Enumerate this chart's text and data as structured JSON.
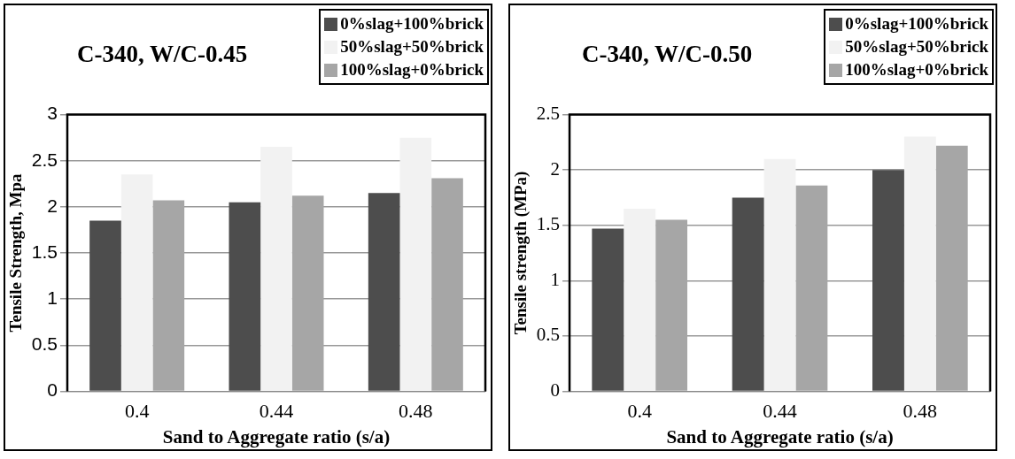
{
  "chart_data": [
    {
      "type": "bar",
      "title": "C-340, W/C-0.45",
      "xlabel": "Sand to Aggregate ratio (s/a)",
      "ylabel": "Tensile Strength, Mpa",
      "categories": [
        "0.4",
        "0.44",
        "0.48"
      ],
      "series": [
        {
          "name": "0%slag+100%brick",
          "color": "#4d4d4d",
          "values": [
            1.85,
            2.05,
            2.15
          ]
        },
        {
          "name": "50%slag+50%brick",
          "color": "#f2f2f2",
          "values": [
            2.35,
            2.65,
            2.75
          ]
        },
        {
          "name": "100%slag+0%brick",
          "color": "#a6a6a6",
          "values": [
            2.07,
            2.12,
            2.31
          ]
        }
      ],
      "ylim": [
        0,
        3
      ],
      "yticks": [
        0,
        0.5,
        1,
        1.5,
        2,
        2.5,
        3
      ],
      "grid": "y",
      "legend": "top right"
    },
    {
      "type": "bar",
      "title": "C-340, W/C-0.50",
      "xlabel": "Sand to Aggregate ratio (s/a)",
      "ylabel": "Tensile strength (MPa)",
      "categories": [
        "0.4",
        "0.44",
        "0.48"
      ],
      "series": [
        {
          "name": "0%slag+100%brick",
          "color": "#4d4d4d",
          "values": [
            1.47,
            1.75,
            2.0
          ]
        },
        {
          "name": "50%slag+50%brick",
          "color": "#f2f2f2",
          "values": [
            1.65,
            2.1,
            2.3
          ]
        },
        {
          "name": "100%slag+0%brick",
          "color": "#a6a6a6",
          "values": [
            1.55,
            1.86,
            2.22
          ]
        }
      ],
      "ylim": [
        0,
        2.5
      ],
      "yticks": [
        0,
        0.5,
        1,
        1.5,
        2,
        2.5
      ],
      "grid": "y",
      "legend": "top right"
    }
  ]
}
